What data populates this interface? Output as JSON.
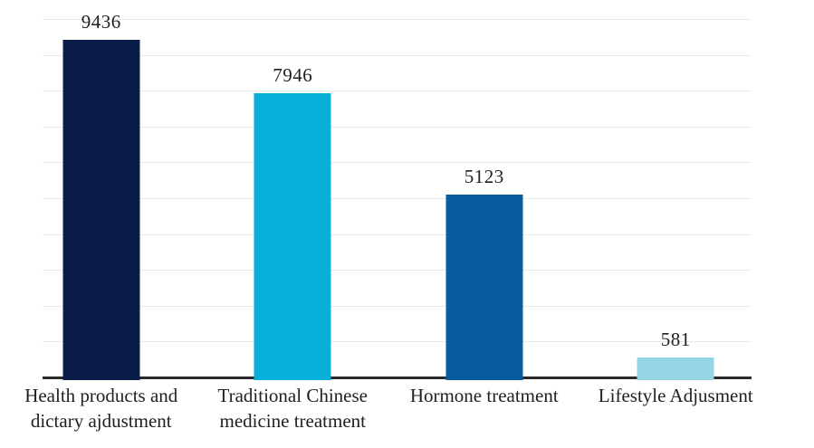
{
  "chart_data": {
    "type": "bar",
    "title": "",
    "xlabel": "",
    "ylabel": "",
    "categories": [
      "Health products and dictary ajdustment",
      "Traditional Chinese medicine treatment",
      "Hormone treatment",
      "Lifestyle Adjusment"
    ],
    "values": [
      9436,
      7946,
      5123,
      581
    ],
    "data_labels": [
      "9436",
      "7946",
      "5123",
      "581"
    ],
    "ylim": [
      0,
      10000
    ],
    "grid": true,
    "grid_step": 1000,
    "y_axis_labels_visible": false,
    "legend": false,
    "bar_colors": [
      "#0a1c47",
      "#06b0da",
      "#075d9d",
      "#95d5e5"
    ],
    "colors": {
      "gridline": "#e9e9e9",
      "axis": "#2b2b2b",
      "text": "#1f1f1f",
      "background": "#ffffff"
    }
  }
}
